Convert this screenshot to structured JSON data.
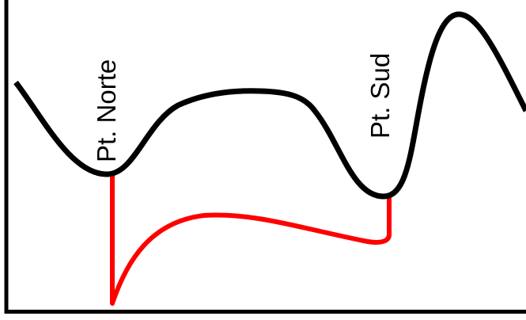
{
  "labels": {
    "north": "Pt. Norte",
    "south": "Pt. Sud"
  },
  "colors": {
    "terrain_line": "#000000",
    "channel_line": "#ff0000",
    "frame": "#000000",
    "background": "#ffffff"
  }
}
